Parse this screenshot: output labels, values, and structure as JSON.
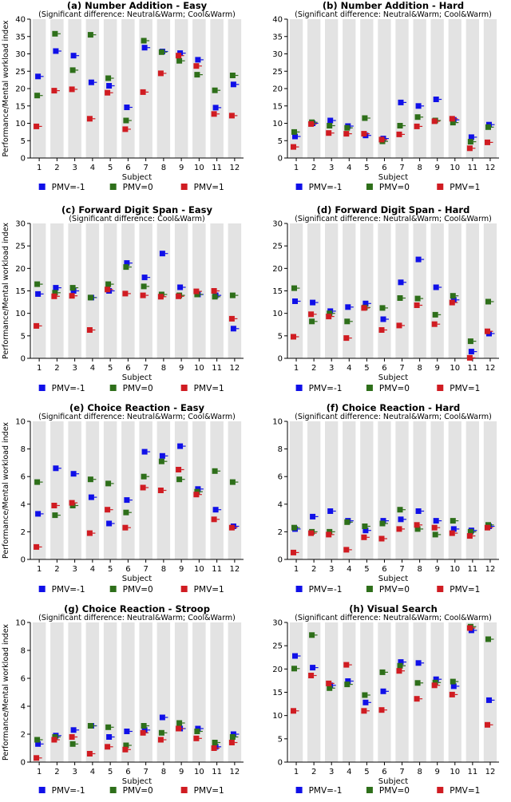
{
  "legend": [
    {
      "label": "PMV=-1",
      "color": "#1010e8"
    },
    {
      "label": "PMV=0",
      "color": "#2e6f1a"
    },
    {
      "label": "PMV=1",
      "color": "#d01c22"
    }
  ],
  "band_color": "#e3e3e3",
  "chart_data": [
    {
      "type": "scatter",
      "title": "(a) Number Addition - Easy",
      "subtitle": "(Significant difference: Neutral&Warm; Cool&Warm)",
      "xlabel": "Subject",
      "ylabel": "Performance/Mental workload index",
      "categories": [
        "1",
        "2",
        "3",
        "4",
        "5",
        "6",
        "7",
        "8",
        "9",
        "10",
        "11",
        "12"
      ],
      "ylim": [
        0,
        40
      ],
      "yticks": [
        0,
        5,
        10,
        15,
        20,
        25,
        30,
        35,
        40
      ],
      "series": [
        {
          "name": "PMV=-1",
          "values": [
            23.5,
            30.8,
            29.5,
            21.8,
            20.8,
            14.6,
            31.8,
            30.7,
            30.2,
            28.3,
            14.5,
            21.2
          ]
        },
        {
          "name": "PMV=0",
          "values": [
            18.0,
            35.8,
            25.3,
            35.5,
            23.0,
            10.8,
            33.8,
            30.5,
            28.0,
            24.0,
            19.5,
            23.8
          ]
        },
        {
          "name": "PMV=1",
          "values": [
            9.1,
            19.4,
            19.8,
            11.3,
            18.8,
            8.3,
            19.0,
            24.4,
            29.5,
            26.5,
            12.7,
            12.2
          ]
        }
      ]
    },
    {
      "type": "scatter",
      "title": "(b) Number Addition - Hard",
      "subtitle": "(Significant difference: Neutral&Warm; Cool&Warm)",
      "xlabel": "Subject",
      "ylabel": "",
      "categories": [
        "1",
        "2",
        "3",
        "4",
        "5",
        "6",
        "7",
        "8",
        "9",
        "10",
        "11",
        "12"
      ],
      "ylim": [
        0,
        40
      ],
      "yticks": [
        0,
        5,
        10,
        15,
        20,
        25,
        30,
        35,
        40
      ],
      "series": [
        {
          "name": "PMV=-1",
          "values": [
            6.2,
            10.0,
            10.8,
            9.2,
            6.5,
            5.6,
            16.0,
            15.0,
            16.9,
            11.0,
            6.0,
            9.6
          ]
        },
        {
          "name": "PMV=0",
          "values": [
            7.5,
            10.3,
            9.3,
            8.7,
            11.5,
            4.8,
            9.3,
            11.8,
            10.8,
            10.2,
            4.7,
            8.9
          ]
        },
        {
          "name": "PMV=1",
          "values": [
            3.2,
            9.8,
            7.2,
            7.0,
            7.0,
            5.3,
            6.8,
            9.1,
            10.6,
            11.3,
            2.8,
            4.5
          ]
        }
      ]
    },
    {
      "type": "scatter",
      "title": "(c) Forward Digit Span - Easy",
      "subtitle": "(Significant difference: Cool&Warm)",
      "xlabel": "Subject",
      "ylabel": "Performance/Mental workload index",
      "categories": [
        "1",
        "2",
        "3",
        "4",
        "5",
        "6",
        "7",
        "8",
        "9",
        "10",
        "11",
        "12"
      ],
      "ylim": [
        0,
        30
      ],
      "yticks": [
        0,
        5,
        10,
        15,
        20,
        25,
        30
      ],
      "series": [
        {
          "name": "PMV=-1",
          "values": [
            14.3,
            15.7,
            15.0,
            13.5,
            15.0,
            21.2,
            18.0,
            23.3,
            15.8,
            14.2,
            14.0,
            6.6
          ]
        },
        {
          "name": "PMV=0",
          "values": [
            16.5,
            14.6,
            15.7,
            13.5,
            16.5,
            20.3,
            16.0,
            14.2,
            14.0,
            14.2,
            13.7,
            14.0
          ]
        },
        {
          "name": "PMV=1",
          "values": [
            7.2,
            13.8,
            13.9,
            6.3,
            15.3,
            14.4,
            14.0,
            13.7,
            13.8,
            14.9,
            15.0,
            8.8
          ]
        }
      ]
    },
    {
      "type": "scatter",
      "title": "(d) Forward Digit Span - Hard",
      "subtitle": "(Significant difference: Neutral&Warm; Cool&Warm)",
      "xlabel": "Subject",
      "ylabel": "",
      "categories": [
        "1",
        "2",
        "3",
        "4",
        "5",
        "6",
        "7",
        "8",
        "9",
        "10",
        "11",
        "12"
      ],
      "ylim": [
        0,
        30
      ],
      "yticks": [
        0,
        5,
        10,
        15,
        20,
        25,
        30
      ],
      "series": [
        {
          "name": "PMV=-1",
          "values": [
            12.7,
            12.4,
            10.5,
            11.4,
            12.2,
            8.7,
            16.9,
            22.0,
            15.8,
            13.0,
            1.5,
            5.5
          ]
        },
        {
          "name": "PMV=0",
          "values": [
            15.6,
            8.2,
            10.0,
            8.2,
            11.3,
            11.2,
            13.4,
            13.3,
            9.7,
            13.9,
            3.8,
            12.6
          ]
        },
        {
          "name": "PMV=1",
          "values": [
            4.8,
            9.8,
            9.3,
            4.5,
            11.2,
            6.3,
            7.3,
            11.8,
            7.6,
            12.4,
            0.1,
            6.0
          ]
        }
      ]
    },
    {
      "type": "scatter",
      "title": "(e) Choice Reaction - Easy",
      "subtitle": "(Significant difference: Neutral&Warm; Cool&Warm)",
      "xlabel": "Subject",
      "ylabel": "Performance/Mental workload index",
      "categories": [
        "1",
        "2",
        "3",
        "4",
        "5",
        "6",
        "7",
        "8",
        "9",
        "10",
        "11",
        "12"
      ],
      "ylim": [
        0,
        10
      ],
      "yticks": [
        0,
        2,
        4,
        6,
        8,
        10
      ],
      "series": [
        {
          "name": "PMV=-1",
          "values": [
            3.3,
            6.6,
            6.2,
            4.5,
            2.6,
            4.3,
            7.8,
            7.5,
            8.2,
            5.1,
            3.6,
            2.4
          ]
        },
        {
          "name": "PMV=0",
          "values": [
            5.6,
            3.2,
            3.9,
            5.8,
            5.5,
            3.4,
            6.0,
            7.1,
            5.8,
            4.9,
            6.4,
            5.6
          ]
        },
        {
          "name": "PMV=1",
          "values": [
            0.9,
            3.9,
            4.1,
            1.9,
            3.6,
            2.3,
            5.2,
            5.0,
            6.5,
            4.7,
            2.9,
            2.3
          ]
        }
      ]
    },
    {
      "type": "scatter",
      "title": "(f) Choice Reaction - Hard",
      "subtitle": "(Significant difference: Neutral&Warm; Cool&Warm)",
      "xlabel": "Subject",
      "ylabel": "",
      "categories": [
        "1",
        "2",
        "3",
        "4",
        "5",
        "6",
        "7",
        "8",
        "9",
        "10",
        "11",
        "12"
      ],
      "ylim": [
        0,
        10
      ],
      "yticks": [
        0,
        2,
        4,
        6,
        8,
        10
      ],
      "series": [
        {
          "name": "PMV=-1",
          "values": [
            2.2,
            3.1,
            3.5,
            2.8,
            2.1,
            2.8,
            2.9,
            3.5,
            2.8,
            2.2,
            2.1,
            2.4
          ]
        },
        {
          "name": "PMV=0",
          "values": [
            2.3,
            2.0,
            2.0,
            2.7,
            2.4,
            2.6,
            3.6,
            2.2,
            1.8,
            2.8,
            2.0,
            2.5
          ]
        },
        {
          "name": "PMV=1",
          "values": [
            0.5,
            1.9,
            1.8,
            0.7,
            1.6,
            1.5,
            2.2,
            2.5,
            2.3,
            1.9,
            1.7,
            2.3
          ]
        }
      ]
    },
    {
      "type": "scatter",
      "title": "(g) Choice Reaction - Stroop",
      "subtitle": "(Significant difference: Neutral&Warm; Cool&Warm)",
      "xlabel": "Subject",
      "ylabel": "Performance/Mental workload index",
      "categories": [
        "1",
        "2",
        "3",
        "4",
        "5",
        "6",
        "7",
        "8",
        "9",
        "10",
        "11",
        "12"
      ],
      "ylim": [
        0,
        10
      ],
      "yticks": [
        0,
        2,
        4,
        6,
        8,
        10
      ],
      "series": [
        {
          "name": "PMV=-1",
          "values": [
            1.3,
            1.9,
            2.3,
            2.6,
            1.8,
            2.2,
            2.3,
            3.2,
            2.4,
            2.4,
            1.1,
            2.0
          ]
        },
        {
          "name": "PMV=0",
          "values": [
            1.6,
            1.8,
            1.3,
            2.6,
            2.5,
            1.2,
            2.6,
            2.1,
            2.8,
            2.2,
            1.4,
            1.8
          ]
        },
        {
          "name": "PMV=1",
          "values": [
            0.3,
            1.6,
            1.8,
            0.6,
            1.1,
            0.9,
            2.1,
            1.6,
            2.4,
            1.7,
            1.0,
            1.4
          ]
        }
      ]
    },
    {
      "type": "scatter",
      "title": "(h) Visual Search",
      "subtitle": "(Significant difference: Neutral&Warm; Cool&Warm)",
      "xlabel": "Subject",
      "ylabel": "",
      "categories": [
        "1",
        "2",
        "3",
        "4",
        "5",
        "6",
        "7",
        "8",
        "9",
        "10",
        "11",
        "12"
      ],
      "ylim": [
        0,
        30
      ],
      "yticks": [
        0,
        5,
        10,
        15,
        20,
        25,
        30
      ],
      "series": [
        {
          "name": "PMV=-1",
          "values": [
            22.8,
            20.3,
            16.5,
            17.4,
            12.8,
            15.2,
            21.5,
            21.3,
            17.8,
            16.3,
            28.3,
            13.3
          ]
        },
        {
          "name": "PMV=0",
          "values": [
            20.1,
            27.3,
            15.9,
            16.7,
            14.4,
            19.3,
            20.7,
            17.0,
            17.1,
            17.3,
            29.1,
            26.4
          ]
        },
        {
          "name": "PMV=1",
          "values": [
            11.0,
            18.6,
            16.9,
            20.9,
            11.0,
            11.2,
            19.6,
            13.6,
            16.5,
            14.5,
            28.8,
            8.0
          ]
        }
      ]
    }
  ]
}
